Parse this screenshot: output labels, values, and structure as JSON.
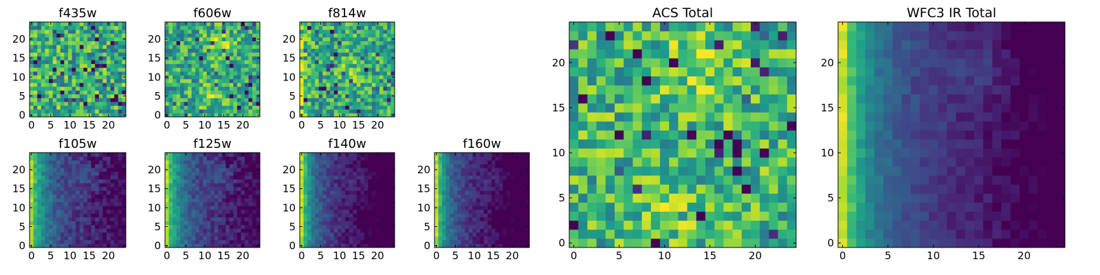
{
  "chart_data": [
    {
      "type": "heatmap",
      "title": "f435w",
      "field": "acs_noise",
      "xticks": [
        "0",
        "5",
        "10",
        "15",
        "20"
      ],
      "yticks": [
        "0",
        "5",
        "10",
        "15",
        "20"
      ],
      "xlim": [
        0,
        24
      ],
      "ylim": [
        0,
        24
      ],
      "colormap": "viridis"
    },
    {
      "type": "heatmap",
      "title": "f606w",
      "field": "acs_blob",
      "xticks": [
        "0",
        "5",
        "10",
        "15",
        "20"
      ],
      "yticks": [
        "0",
        "5",
        "10",
        "15",
        "20"
      ],
      "xlim": [
        0,
        24
      ],
      "ylim": [
        0,
        24
      ],
      "colormap": "viridis"
    },
    {
      "type": "heatmap",
      "title": "f814w",
      "field": "acs_leftedge",
      "xticks": [
        "0",
        "5",
        "10",
        "15",
        "20"
      ],
      "yticks": [
        "0",
        "5",
        "10",
        "15",
        "20"
      ],
      "xlim": [
        0,
        24
      ],
      "ylim": [
        0,
        24
      ],
      "colormap": "viridis"
    },
    {
      "type": "heatmap",
      "title": "f105w",
      "field": "ir_gradient",
      "xticks": [
        "0",
        "5",
        "10",
        "15",
        "20"
      ],
      "yticks": [
        "0",
        "5",
        "10",
        "15",
        "20"
      ],
      "xlim": [
        0,
        24
      ],
      "ylim": [
        0,
        24
      ],
      "colormap": "viridis"
    },
    {
      "type": "heatmap",
      "title": "f125w",
      "field": "ir_gradient",
      "xticks": [
        "0",
        "5",
        "10",
        "15",
        "20"
      ],
      "yticks": [
        "0",
        "5",
        "10",
        "15",
        "20"
      ],
      "xlim": [
        0,
        24
      ],
      "ylim": [
        0,
        24
      ],
      "colormap": "viridis"
    },
    {
      "type": "heatmap",
      "title": "f140w",
      "field": "ir_gradient_dark",
      "xticks": [
        "0",
        "5",
        "10",
        "15",
        "20"
      ],
      "yticks": [
        "0",
        "5",
        "10",
        "15",
        "20"
      ],
      "xlim": [
        0,
        24
      ],
      "ylim": [
        0,
        24
      ],
      "colormap": "viridis"
    },
    {
      "type": "heatmap",
      "title": "f160w",
      "field": "ir_gradient_dark",
      "xticks": [
        "0",
        "5",
        "10",
        "15",
        "20"
      ],
      "yticks": [
        "0",
        "5",
        "10",
        "15",
        "20"
      ],
      "xlim": [
        0,
        24
      ],
      "ylim": [
        0,
        24
      ],
      "colormap": "viridis"
    },
    {
      "type": "heatmap",
      "title": "ACS Total",
      "field": "acs_total",
      "xticks": [
        "0",
        "5",
        "10",
        "15",
        "20"
      ],
      "yticks": [
        "0",
        "5",
        "10",
        "15",
        "20"
      ],
      "xlim": [
        0,
        24
      ],
      "ylim": [
        0,
        24
      ],
      "colormap": "viridis"
    },
    {
      "type": "heatmap",
      "title": "WFC3 IR Total",
      "field": "ir_total",
      "xticks": [
        "0",
        "5",
        "10",
        "15",
        "20"
      ],
      "yticks": [
        "0",
        "5",
        "10",
        "15",
        "20"
      ],
      "xlim": [
        0,
        24
      ],
      "ylim": [
        0,
        24
      ],
      "colormap": "viridis"
    }
  ]
}
